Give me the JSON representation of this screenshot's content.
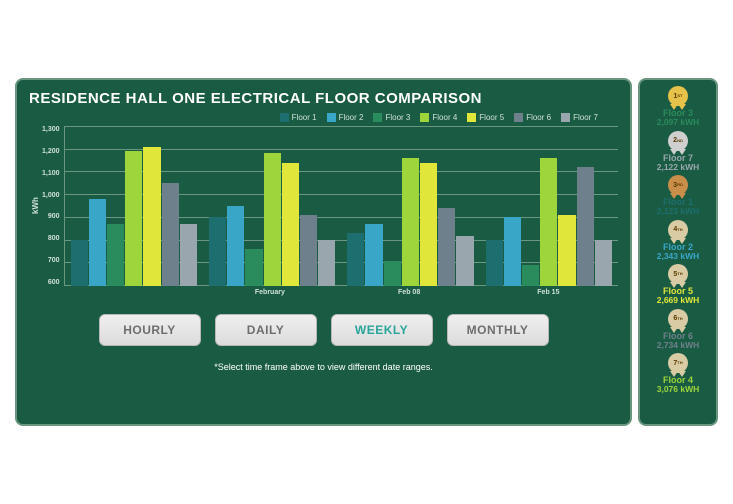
{
  "title": "RESIDENCE HALL ONE ELECTRICAL FLOOR COMPARISON",
  "background_color": "#1a5c43",
  "border_color": "#6b9680",
  "grid_color": "#6b9680",
  "text_color": "#cfe0d7",
  "chart": {
    "type": "bar",
    "ylabel": "kWh",
    "ylim": [
      600,
      1300
    ],
    "ytick_step": 100,
    "categories": [
      "",
      "February",
      "Feb 08",
      "Feb 15"
    ],
    "series": [
      {
        "name": "Floor 1",
        "color": "#1d6e6e",
        "values": [
          800,
          900,
          830,
          800
        ]
      },
      {
        "name": "Floor 2",
        "color": "#3aa6c7",
        "values": [
          980,
          950,
          870,
          900
        ]
      },
      {
        "name": "Floor 3",
        "color": "#2a8b5c",
        "values": [
          870,
          760,
          710,
          690
        ]
      },
      {
        "name": "Floor 4",
        "color": "#9dd53a",
        "values": [
          1190,
          1180,
          1160,
          1160
        ]
      },
      {
        "name": "Floor 5",
        "color": "#e0e63a",
        "values": [
          1210,
          1140,
          1140,
          910
        ]
      },
      {
        "name": "Floor 6",
        "color": "#6e808c",
        "values": [
          1050,
          910,
          940,
          1120
        ]
      },
      {
        "name": "Floor 7",
        "color": "#9aa6ad",
        "values": [
          870,
          800,
          820,
          800
        ]
      }
    ]
  },
  "buttons": [
    {
      "label": "HOURLY",
      "active": false
    },
    {
      "label": "DAILY",
      "active": false
    },
    {
      "label": "WEEKLY",
      "active": true
    },
    {
      "label": "MONTHLY",
      "active": false
    }
  ],
  "hint": "*Select time frame above to view different date ranges.",
  "rankings": [
    {
      "ordinal": "1",
      "suffix": "ST",
      "ribbon_fill": "#e6c24a",
      "floor": "Floor 3",
      "value": "2,097 kWH",
      "color": "#2a8b5c"
    },
    {
      "ordinal": "2",
      "suffix": "ND",
      "ribbon_fill": "#cfcfcf",
      "floor": "Floor 7",
      "value": "2,122 kWH",
      "color": "#9aa6ad"
    },
    {
      "ordinal": "3",
      "suffix": "RD",
      "ribbon_fill": "#c98e4a",
      "floor": "Floor 1",
      "value": "2,123 kWH",
      "color": "#1d6e6e"
    },
    {
      "ordinal": "4",
      "suffix": "TH",
      "ribbon_fill": "#d9cba3",
      "floor": "Floor 2",
      "value": "2,343 kWH",
      "color": "#3aa6c7"
    },
    {
      "ordinal": "5",
      "suffix": "TH",
      "ribbon_fill": "#d9cba3",
      "floor": "Floor 5",
      "value": "2,669 kWH",
      "color": "#e0e63a"
    },
    {
      "ordinal": "6",
      "suffix": "TH",
      "ribbon_fill": "#d9cba3",
      "floor": "Floor 6",
      "value": "2,734 kWH",
      "color": "#6e808c"
    },
    {
      "ordinal": "7",
      "suffix": "TH",
      "ribbon_fill": "#d9cba3",
      "floor": "Floor 4",
      "value": "3,076 kWH",
      "color": "#9dd53a"
    }
  ]
}
